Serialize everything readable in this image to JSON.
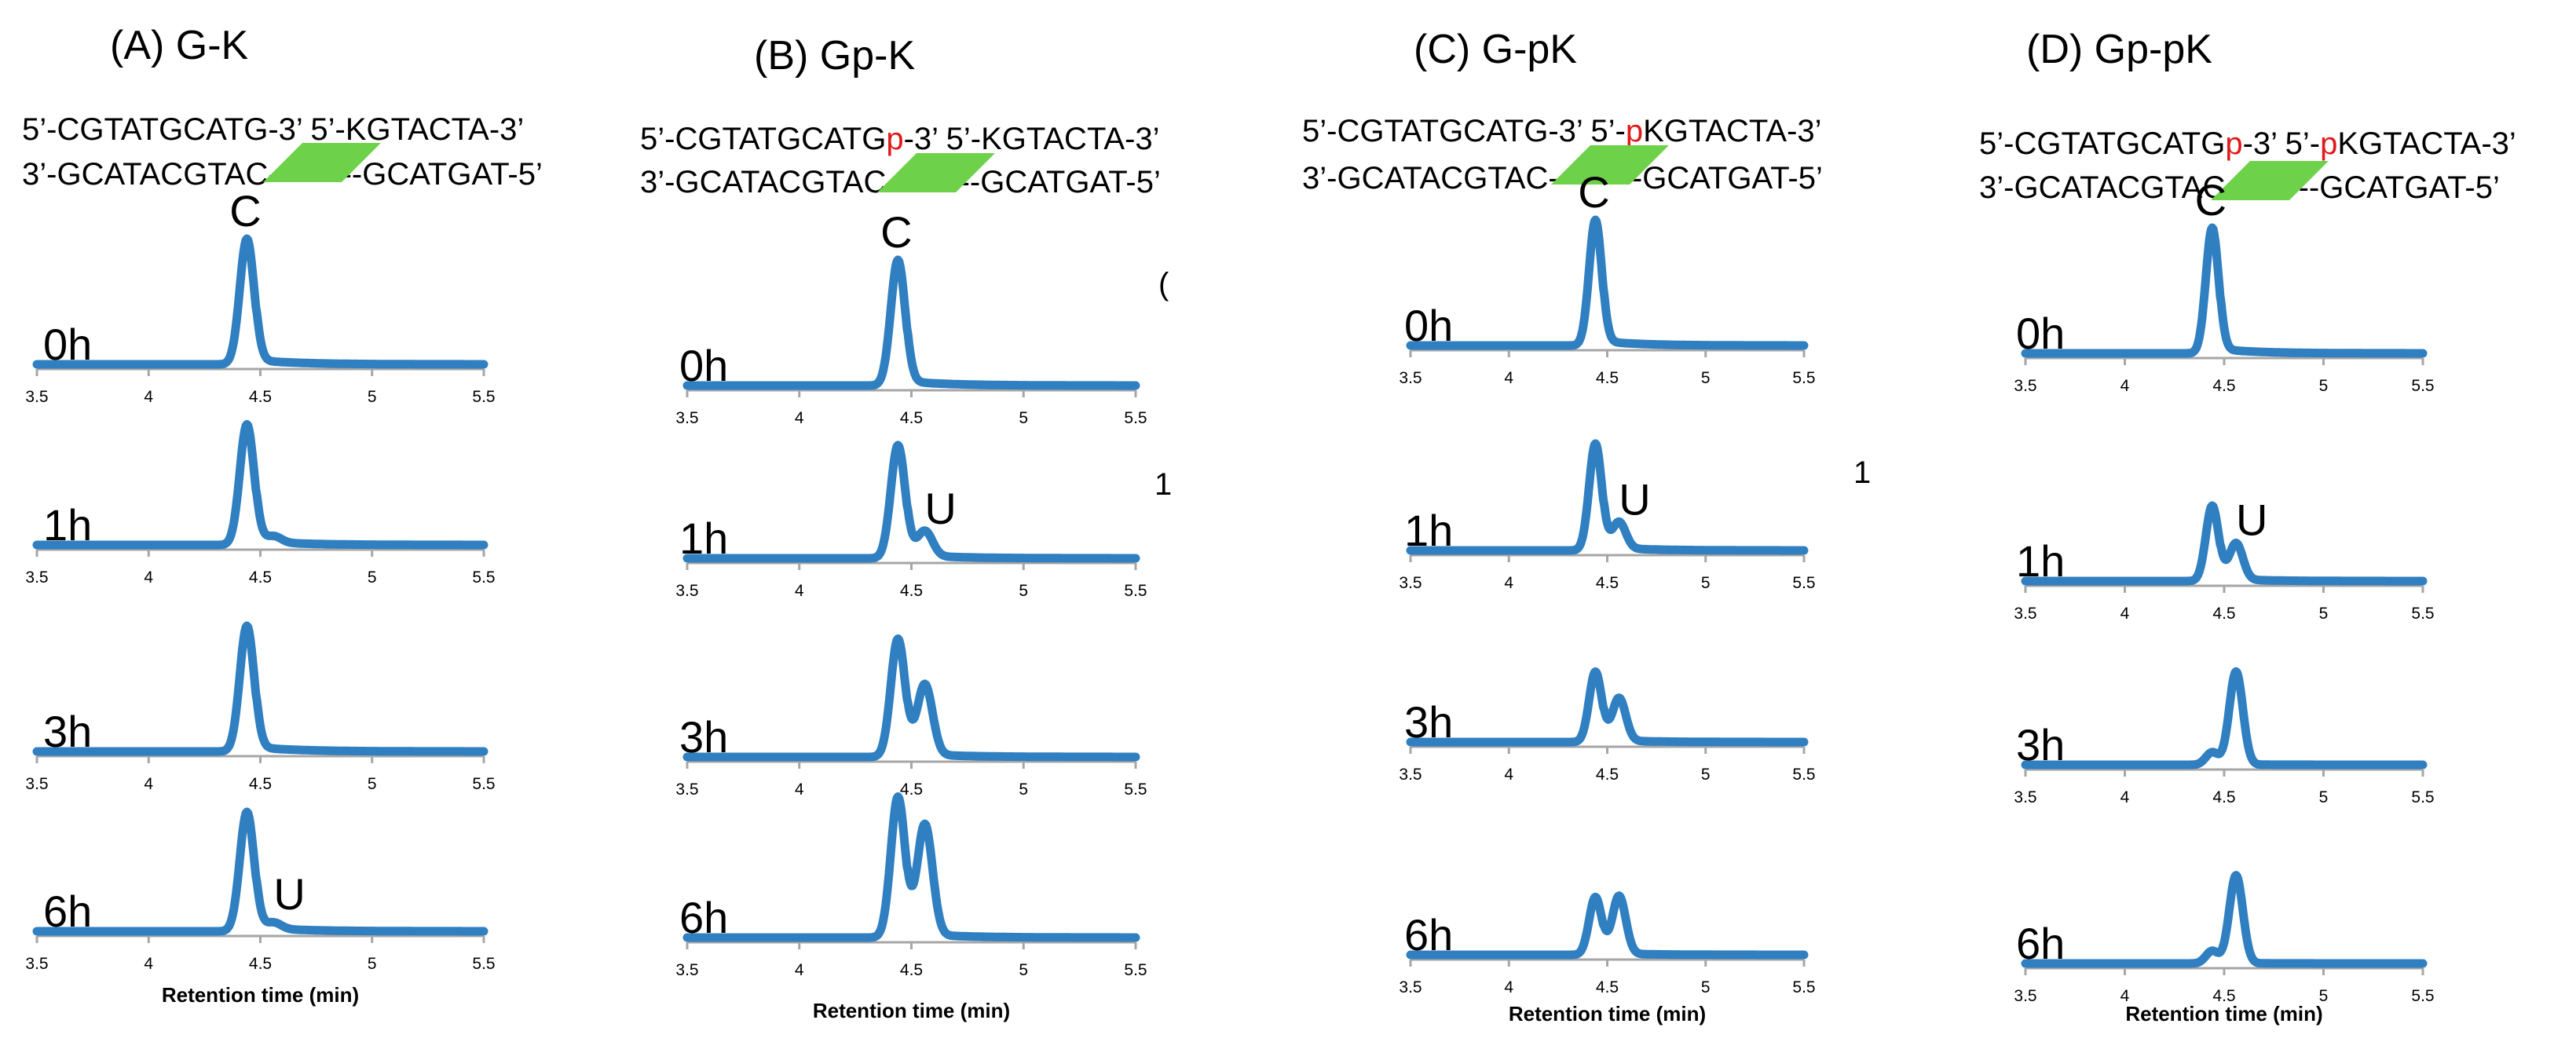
{
  "panels": [
    {
      "title": "(A) G-K",
      "seq_top": [
        {
          "t": "5’-CGTATGCATG-3’ 5’-KGTACTA-3’",
          "red": false
        }
      ],
      "seq_bottom": "3’-GCATACGTAC---------GCATGAT-5’"
    },
    {
      "title": "(B) Gp-K",
      "seq_top": [
        {
          "t": "5’-CGTATGCATG",
          "red": false
        },
        {
          "t": "p",
          "red": true
        },
        {
          "t": "-3’ 5’-KGTACTA-3’",
          "red": false
        }
      ],
      "seq_bottom": "3’-GCATACGTAC---------GCATGAT-5’"
    },
    {
      "title": "(C) G-pK",
      "seq_top": [
        {
          "t": "5’-CGTATGCATG-3’ 5’-",
          "red": false
        },
        {
          "t": "p",
          "red": true
        },
        {
          "t": "KGTACTA-3’",
          "red": false
        }
      ],
      "seq_bottom": "3’-GCATACGTAC---------GCATGAT-5’"
    },
    {
      "title": "(D) Gp-pK",
      "seq_top": [
        {
          "t": "5’-CGTATGCATG",
          "red": false
        },
        {
          "t": "p",
          "red": true
        },
        {
          "t": "-3’ 5’-",
          "red": false
        },
        {
          "t": "p",
          "red": true
        },
        {
          "t": "KGTACTA-3’",
          "red": false
        }
      ],
      "seq_bottom": "3’-GCATACGTAC---------GCATGAT-5’"
    }
  ],
  "stray_marks": [
    "(",
    "1",
    "1"
  ],
  "colors": {
    "trace": "#2f7fc1",
    "axis": "#a6a6a6",
    "bar": "#6ed14a",
    "phosphate": "#e0191b"
  },
  "chart_data": {
    "type": "line",
    "xlabel": "Retention time (min)",
    "xlim": [
      3.5,
      5.5
    ],
    "xticks": [
      "3.5",
      "4",
      "4.5",
      "5",
      "5.5"
    ],
    "time_labels": [
      "0h",
      "1h",
      "3h",
      "6h"
    ],
    "peak_labels": {
      "C": "C",
      "U": "U"
    },
    "peak_positions": {
      "C": 4.44,
      "U": 4.56
    },
    "series": [
      {
        "panel": "(A) G-K",
        "time": "0h",
        "c_height": 1.0,
        "u_height": 0.0,
        "label": "C"
      },
      {
        "panel": "(A) G-K",
        "time": "1h",
        "c_height": 0.96,
        "u_height": 0.05,
        "label": ""
      },
      {
        "panel": "(A) G-K",
        "time": "3h",
        "c_height": 1.0,
        "u_height": 0.0,
        "label": ""
      },
      {
        "panel": "(A) G-K",
        "time": "6h",
        "c_height": 0.95,
        "u_height": 0.05,
        "label": "U"
      },
      {
        "panel": "(B) Gp-K",
        "time": "0h",
        "c_height": 1.0,
        "u_height": 0.0,
        "label": "C"
      },
      {
        "panel": "(B) Gp-K",
        "time": "1h",
        "c_height": 0.9,
        "u_height": 0.2,
        "label": "U"
      },
      {
        "panel": "(B) Gp-K",
        "time": "3h",
        "c_height": 0.94,
        "u_height": 0.56,
        "label": ""
      },
      {
        "panel": "(B) Gp-K",
        "time": "6h",
        "c_height": 1.12,
        "u_height": 0.88,
        "label": ""
      },
      {
        "panel": "(C) G-pK",
        "time": "0h",
        "c_height": 1.0,
        "u_height": 0.0,
        "label": "C"
      },
      {
        "panel": "(C) G-pK",
        "time": "1h",
        "c_height": 0.85,
        "u_height": 0.21,
        "label": "U"
      },
      {
        "panel": "(C) G-pK",
        "time": "3h",
        "c_height": 0.56,
        "u_height": 0.34,
        "label": ""
      },
      {
        "panel": "(C) G-pK",
        "time": "6h",
        "c_height": 0.46,
        "u_height": 0.46,
        "label": ""
      },
      {
        "panel": "(D) Gp-pK",
        "time": "0h",
        "c_height": 1.0,
        "u_height": 0.0,
        "label": "C"
      },
      {
        "panel": "(D) Gp-pK",
        "time": "1h",
        "c_height": 0.6,
        "u_height": 0.29,
        "label": "U"
      },
      {
        "panel": "(D) Gp-pK",
        "time": "3h",
        "c_height": 0.1,
        "u_height": 0.74,
        "label": ""
      },
      {
        "panel": "(D) Gp-pK",
        "time": "6h",
        "c_height": 0.1,
        "u_height": 0.7,
        "label": ""
      }
    ]
  }
}
